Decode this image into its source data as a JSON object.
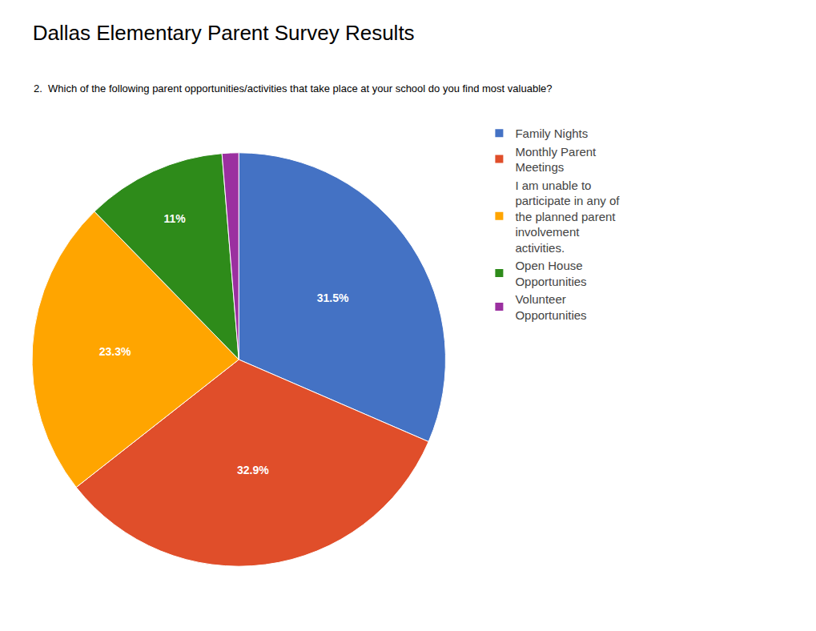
{
  "chart_data": {
    "type": "pie",
    "title": "Dallas Elementary Parent Survey Results",
    "subtitle": "2.  Which of the following parent opportunities/activities that take place at your school do you find most valuable?",
    "categories": [
      "Family Nights",
      "Monthly Parent\nMeetings",
      "I am unable to\nparticipate in any of\nthe planned parent\ninvolvement\nactivities.",
      "Open House\nOpportunities",
      "Volunteer\nOpportunities"
    ],
    "values": [
      31.5,
      32.9,
      23.3,
      11.0,
      1.3
    ],
    "value_labels": [
      "31.5%",
      "32.9%",
      "23.3%",
      "11%",
      null
    ],
    "colors": [
      "#4472C4",
      "#E04E2A",
      "#FFA500",
      "#2E8B1A",
      "#9B30A0"
    ],
    "data_labels": true,
    "legend": "right"
  }
}
